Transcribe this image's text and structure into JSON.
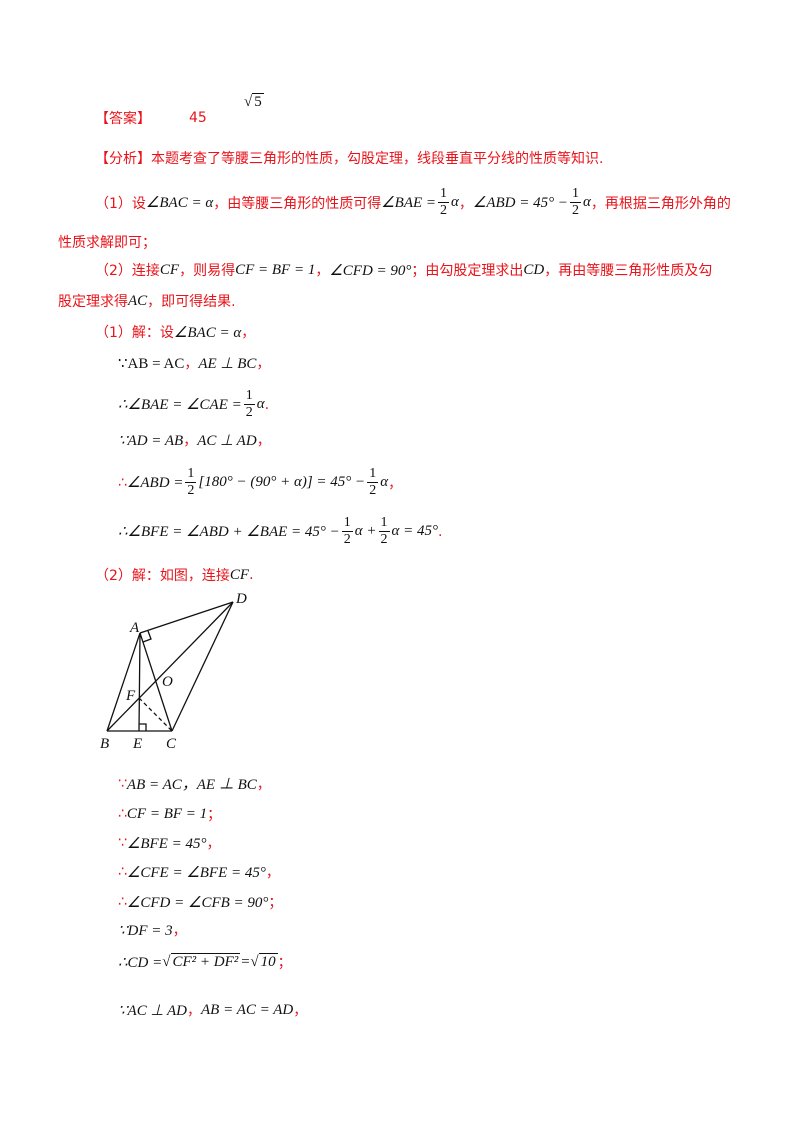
{
  "answer": {
    "label": "【答案】",
    "value1": "45",
    "value2_radicand": "5"
  },
  "lines": [
    {
      "id": "analysis",
      "segs": [
        {
          "t": "【分析】本题考查了等腰三角形的性质，勾股定理，线段垂直平分线的性质等知识.",
          "s": "red"
        }
      ]
    },
    {
      "id": "analysis-1",
      "segs": [
        {
          "t": "（1）设",
          "s": "red"
        },
        {
          "t": "∠BAC = α",
          "s": "math"
        },
        {
          "t": "，由等腰三角形的性质可得",
          "s": "red"
        },
        {
          "t": "∠BAE = ",
          "s": "math"
        },
        {
          "n": "1",
          "d": "2"
        },
        {
          "t": "α",
          "s": "math"
        },
        {
          "t": "，",
          "s": "red"
        },
        {
          "t": "∠ABD = 45° − ",
          "s": "math"
        },
        {
          "n": "1",
          "d": "2"
        },
        {
          "t": "α",
          "s": "math"
        },
        {
          "t": "，再根据三角形外角的",
          "s": "red"
        }
      ]
    },
    {
      "id": "analysis-1b",
      "segs": [
        {
          "t": "性质求解即可；",
          "s": "red"
        }
      ]
    },
    {
      "id": "analysis-2",
      "segs": [
        {
          "t": "（2）连接",
          "s": "red"
        },
        {
          "t": "CF",
          "s": "math"
        },
        {
          "t": "，则易得",
          "s": "red"
        },
        {
          "t": "CF = BF = 1",
          "s": "math"
        },
        {
          "t": "，",
          "s": "red"
        },
        {
          "t": "∠CFD = 90°",
          "s": "math"
        },
        {
          "t": "；由勾股定理求出",
          "s": "red"
        },
        {
          "t": "CD",
          "s": "math"
        },
        {
          "t": "，再由等腰三角形性质及勾",
          "s": "red"
        }
      ]
    },
    {
      "id": "analysis-2b",
      "segs": [
        {
          "t": "股定理求得",
          "s": "red"
        },
        {
          "t": "AC",
          "s": "math"
        },
        {
          "t": "，即可得结果.",
          "s": "red"
        }
      ]
    },
    {
      "id": "sol1",
      "segs": [
        {
          "t": "（1）解：设",
          "s": "red"
        },
        {
          "t": "∠BAC = α",
          "s": "math"
        },
        {
          "t": "，",
          "s": "red"
        }
      ]
    },
    {
      "id": "sol1-a",
      "segs": [
        {
          "t": "∵AB = AC",
          "s": "up"
        },
        {
          "t": "，",
          "s": "red"
        },
        {
          "t": "AE ⊥ BC",
          "s": "math"
        },
        {
          "t": "，",
          "s": "red"
        }
      ]
    },
    {
      "id": "sol1-b",
      "segs": [
        {
          "t": "∴∠BAE = ∠CAE = ",
          "s": "math"
        },
        {
          "n": "1",
          "d": "2"
        },
        {
          "t": "α",
          "s": "math"
        },
        {
          "t": " .",
          "s": "red"
        }
      ]
    },
    {
      "id": "sol1-c",
      "segs": [
        {
          "t": "∵AD = AB",
          "s": "math"
        },
        {
          "t": "，",
          "s": "red"
        },
        {
          "t": "AC ⊥ AD",
          "s": "math"
        },
        {
          "t": "，",
          "s": "red"
        }
      ]
    },
    {
      "id": "sol1-d",
      "segs": [
        {
          "t": "∴",
          "s": "red"
        },
        {
          "t": " ∠ABD = ",
          "s": "math"
        },
        {
          "n": "1",
          "d": "2"
        },
        {
          "t": "[180° − (90° + α)] = 45° − ",
          "s": "math"
        },
        {
          "n": "1",
          "d": "2"
        },
        {
          "t": "α",
          "s": "math"
        },
        {
          "t": "，",
          "s": "red"
        }
      ]
    },
    {
      "id": "sol1-e",
      "segs": [
        {
          "t": "∴∠BFE = ∠ABD + ∠BAE = 45° − ",
          "s": "math"
        },
        {
          "n": "1",
          "d": "2"
        },
        {
          "t": "α + ",
          "s": "math"
        },
        {
          "n": "1",
          "d": "2"
        },
        {
          "t": "α = 45°",
          "s": "math"
        },
        {
          "t": " .",
          "s": "red"
        }
      ]
    },
    {
      "id": "sol2",
      "segs": [
        {
          "t": "（2）解：如图，连接",
          "s": "red"
        },
        {
          "t": "CF",
          "s": "math"
        },
        {
          "t": " .",
          "s": "red"
        }
      ]
    },
    {
      "id": "sol2-a",
      "segs": [
        {
          "t": "∵",
          "s": "red"
        },
        {
          "t": " AB = AC，AE ⊥ BC",
          "s": "math"
        },
        {
          "t": "，",
          "s": "red"
        }
      ]
    },
    {
      "id": "sol2-b",
      "segs": [
        {
          "t": "∴",
          "s": "red"
        },
        {
          "t": "CF = BF = 1",
          "s": "math"
        },
        {
          "t": "；",
          "s": "red"
        }
      ]
    },
    {
      "id": "sol2-c",
      "segs": [
        {
          "t": "∵",
          "s": "red"
        },
        {
          "t": " ∠BFE = 45°",
          "s": "math"
        },
        {
          "t": "，",
          "s": "red"
        }
      ]
    },
    {
      "id": "sol2-d",
      "segs": [
        {
          "t": "∴",
          "s": "red"
        },
        {
          "t": " ∠CFE = ∠BFE = 45°",
          "s": "math"
        },
        {
          "t": "，",
          "s": "red"
        }
      ]
    },
    {
      "id": "sol2-e",
      "segs": [
        {
          "t": "∴",
          "s": "red"
        },
        {
          "t": " ∠CFD = ∠CFB = 90°",
          "s": "math"
        },
        {
          "t": "；",
          "s": "red"
        }
      ]
    },
    {
      "id": "sol2-f",
      "segs": [
        {
          "t": "∵DF = 3",
          "s": "math"
        },
        {
          "t": "，",
          "s": "red"
        }
      ]
    },
    {
      "id": "sol2-g",
      "segs": [
        {
          "t": "∴CD = ",
          "s": "math"
        },
        {
          "r": "CF² + DF²"
        },
        {
          "t": " = ",
          "s": "math"
        },
        {
          "r": "10"
        },
        {
          "t": " ；",
          "s": "red"
        }
      ]
    },
    {
      "id": "sol2-h",
      "segs": [
        {
          "t": "∵AC ⊥ AD",
          "s": "math"
        },
        {
          "t": "，",
          "s": "red"
        },
        {
          "t": "AB = AC = AD",
          "s": "math"
        },
        {
          "t": "，",
          "s": "red"
        }
      ]
    }
  ],
  "diagram": {
    "labels": {
      "A": "A",
      "B": "B",
      "C": "C",
      "D": "D",
      "E": "E",
      "F": "F",
      "O": "O"
    }
  },
  "colors": {
    "red": "#e8141b",
    "text": "#111111"
  }
}
